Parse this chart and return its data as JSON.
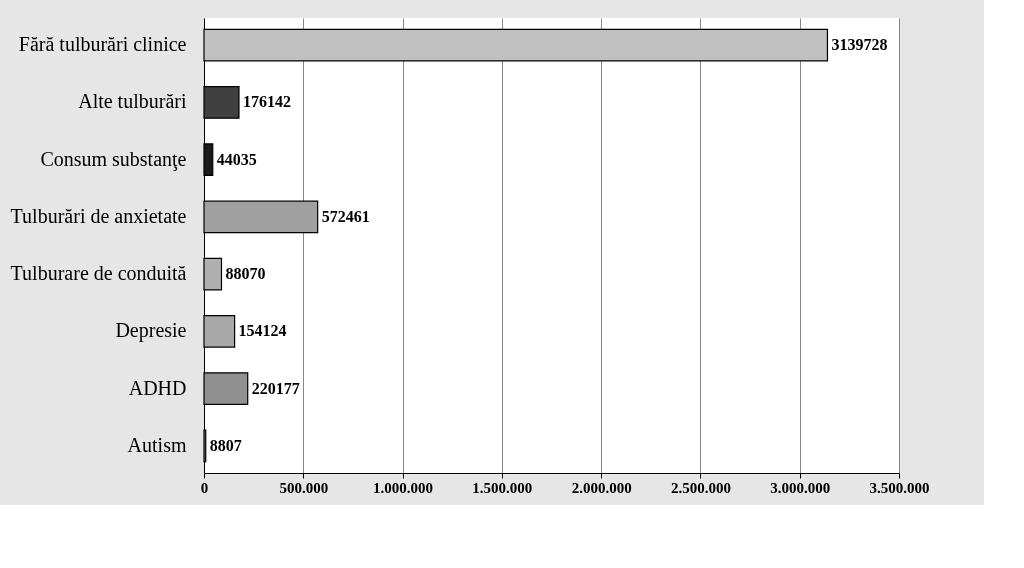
{
  "chart_data": {
    "type": "bar",
    "orientation": "horizontal",
    "categories": [
      "Fără tulburări clinice",
      "Alte tulburări",
      "Consum substanţe",
      "Tulburări de anxietate",
      "Tulburare de conduită",
      "Depresie",
      "ADHD",
      "Autism"
    ],
    "values": [
      3139728,
      176142,
      44035,
      572461,
      88070,
      154124,
      220177,
      8807
    ],
    "colors": [
      "#c0c0c0",
      "#404040",
      "#1a1a1a",
      "#a0a0a0",
      "#b0b0b0",
      "#a8a8a8",
      "#909090",
      "#808080"
    ],
    "data_labels": true,
    "xlim": [
      0,
      3500000
    ],
    "xticks": [
      0,
      {
        "value": 500000,
        "label": "500.000"
      },
      {
        "value": 1000000,
        "label": "1.000.000"
      },
      {
        "value": 1500000,
        "label": "1.500.000"
      },
      {
        "value": 2000000,
        "label": "2.000.000"
      },
      {
        "value": 2500000,
        "label": "2.500.000"
      },
      {
        "value": 3000000,
        "label": "3.000.000"
      },
      {
        "value": 3500000,
        "label": "3.500.000"
      }
    ],
    "grid": "x"
  }
}
